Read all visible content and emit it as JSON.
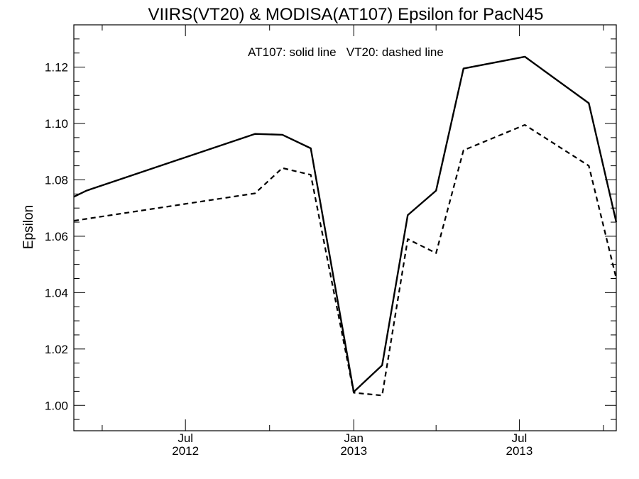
{
  "chart_data": {
    "type": "line",
    "title": "VIIRS(VT20) & MODISA(AT107)  Epsilon for PacN45",
    "xlabel": "",
    "ylabel": "Epsilon",
    "annotation": "AT107: solid line   VT20: dashed line",
    "xlim": [
      "2012-03-01",
      "2013-10-15"
    ],
    "ylim": [
      0.991,
      1.135
    ],
    "yticks": [
      "1.00",
      "1.02",
      "1.04",
      "1.06",
      "1.08",
      "1.10",
      "1.12"
    ],
    "xticks": [
      {
        "date": "2012-07-01",
        "label": "Jul",
        "year": "2012"
      },
      {
        "date": "2013-01-01",
        "label": "Jan",
        "year": "2013"
      },
      {
        "date": "2013-07-01",
        "label": "Jul",
        "year": "2013"
      }
    ],
    "x_minor_ticks": [
      "2012-04-01",
      "2012-10-01",
      "2013-04-01",
      "2013-10-01"
    ],
    "grid": false,
    "series": [
      {
        "name": "AT107",
        "style": "solid",
        "x": [
          "2012-03-01",
          "2012-03-15",
          "2012-09-15",
          "2012-10-15",
          "2012-11-15",
          "2013-01-01",
          "2013-02-01",
          "2013-03-01",
          "2013-04-01",
          "2013-05-01",
          "2013-07-07",
          "2013-09-15",
          "2013-10-15"
        ],
        "y": [
          1.074,
          1.0762,
          1.0963,
          1.096,
          1.0912,
          1.0048,
          1.0142,
          1.0675,
          1.0762,
          1.1195,
          1.1237,
          1.1072,
          1.065
        ]
      },
      {
        "name": "VT20",
        "style": "dashed",
        "x": [
          "2012-03-01",
          "2012-09-15",
          "2012-10-15",
          "2012-11-15",
          "2013-01-01",
          "2013-02-01",
          "2013-03-01",
          "2013-04-01",
          "2013-05-01",
          "2013-07-07",
          "2013-09-15",
          "2013-10-15"
        ],
        "y": [
          1.0655,
          1.0752,
          1.0842,
          1.0818,
          1.0045,
          1.0035,
          1.059,
          1.054,
          1.0905,
          1.0995,
          1.085,
          1.045
        ]
      }
    ]
  }
}
